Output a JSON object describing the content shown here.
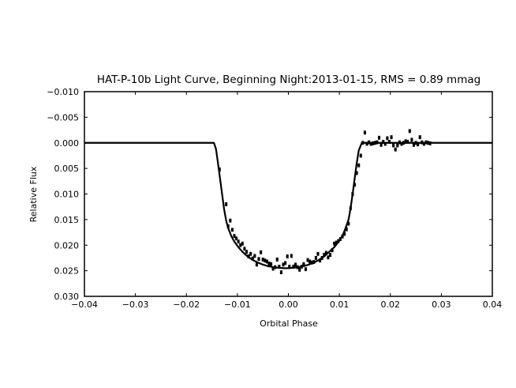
{
  "chart_data": {
    "type": "scatter",
    "title": "HAT-P-10b Light Curve, Beginning Night:2013-01-15, RMS = 0.89 mmag",
    "xlabel": "Orbital Phase",
    "ylabel": "Relative Flux",
    "xlim": [
      -0.04,
      0.04
    ],
    "ylim": [
      0.03,
      -0.01
    ],
    "y_inverted": true,
    "grid": false,
    "x_ticks": [
      -0.04,
      -0.03,
      -0.02,
      -0.01,
      0.0,
      0.01,
      0.02,
      0.03,
      0.04
    ],
    "x_tick_labels": [
      "−0.04",
      "−0.03",
      "−0.02",
      "−0.01",
      "0.00",
      "0.01",
      "0.02",
      "0.03",
      "0.04"
    ],
    "y_ticks": [
      -0.01,
      -0.005,
      0.0,
      0.005,
      0.01,
      0.015,
      0.02,
      0.025,
      0.03
    ],
    "y_tick_labels": [
      "−0.010",
      "−0.005",
      "0.000",
      "0.005",
      "0.010",
      "0.015",
      "0.020",
      "0.025",
      "0.030"
    ],
    "colors": {
      "data": "#000000",
      "model": "#000000",
      "background": "#ffffff"
    },
    "series": [
      {
        "kind": "errorbar-points",
        "error": 0.0003,
        "points": [
          [
            -0.0135,
            0.0052
          ],
          [
            -0.0122,
            0.012
          ],
          [
            -0.0118,
            0.0163
          ],
          [
            -0.0114,
            0.0152
          ],
          [
            -0.011,
            0.017
          ],
          [
            -0.0106,
            0.0182
          ],
          [
            -0.0102,
            0.0187
          ],
          [
            -0.0098,
            0.0193
          ],
          [
            -0.0094,
            0.02
          ],
          [
            -0.009,
            0.0197
          ],
          [
            -0.0086,
            0.0207
          ],
          [
            -0.0082,
            0.0213
          ],
          [
            -0.0078,
            0.0222
          ],
          [
            -0.0074,
            0.0217
          ],
          [
            -0.007,
            0.0226
          ],
          [
            -0.0066,
            0.0221
          ],
          [
            -0.0062,
            0.0238
          ],
          [
            -0.0058,
            0.0227
          ],
          [
            -0.0054,
            0.0214
          ],
          [
            -0.005,
            0.0228
          ],
          [
            -0.0046,
            0.023
          ],
          [
            -0.0042,
            0.0232
          ],
          [
            -0.0038,
            0.0236
          ],
          [
            -0.0034,
            0.0237
          ],
          [
            -0.003,
            0.0246
          ],
          [
            -0.0026,
            0.0243
          ],
          [
            -0.0022,
            0.0228
          ],
          [
            -0.0018,
            0.0242
          ],
          [
            -0.0014,
            0.0253
          ],
          [
            -0.001,
            0.0238
          ],
          [
            -0.0006,
            0.0235
          ],
          [
            -0.0002,
            0.0222
          ],
          [
            0.0002,
            0.0242
          ],
          [
            0.0006,
            0.0221
          ],
          [
            0.001,
            0.0242
          ],
          [
            0.0014,
            0.0238
          ],
          [
            0.0018,
            0.0243
          ],
          [
            0.0022,
            0.0248
          ],
          [
            0.0026,
            0.0242
          ],
          [
            0.003,
            0.0237
          ],
          [
            0.0034,
            0.0247
          ],
          [
            0.0038,
            0.0229
          ],
          [
            0.0042,
            0.0232
          ],
          [
            0.0046,
            0.0234
          ],
          [
            0.005,
            0.0233
          ],
          [
            0.0054,
            0.0225
          ],
          [
            0.0058,
            0.0217
          ],
          [
            0.0062,
            0.023
          ],
          [
            0.0066,
            0.0225
          ],
          [
            0.007,
            0.0219
          ],
          [
            0.0074,
            0.0215
          ],
          [
            0.0078,
            0.0224
          ],
          [
            0.0082,
            0.0219
          ],
          [
            0.0086,
            0.021
          ],
          [
            0.009,
            0.0197
          ],
          [
            0.0094,
            0.0195
          ],
          [
            0.0098,
            0.0192
          ],
          [
            0.0102,
            0.0188
          ],
          [
            0.0106,
            0.0183
          ],
          [
            0.011,
            0.0178
          ],
          [
            0.0114,
            0.0169
          ],
          [
            0.0118,
            0.0158
          ],
          [
            0.0122,
            0.0128
          ],
          [
            0.0126,
            0.01
          ],
          [
            0.013,
            0.0082
          ],
          [
            0.0134,
            0.0059
          ],
          [
            0.0138,
            0.0044
          ],
          [
            0.0142,
            0.0025
          ],
          [
            0.0146,
            0.0
          ],
          [
            0.015,
            -0.002
          ],
          [
            0.0154,
            0.0002
          ],
          [
            0.0158,
            -0.0001
          ],
          [
            0.0162,
            0.0002
          ],
          [
            0.0166,
            0.0001
          ],
          [
            0.017,
            0.0
          ],
          [
            0.0174,
            -0.0001
          ],
          [
            0.0178,
            -0.001
          ],
          [
            0.0182,
            0.0004
          ],
          [
            0.0186,
            -0.0002
          ],
          [
            0.019,
            0.0002
          ],
          [
            0.0194,
            -0.0009
          ],
          [
            0.0198,
            -0.0002
          ],
          [
            0.0202,
            -0.0011
          ],
          [
            0.0206,
            0.0005
          ],
          [
            0.021,
            0.0013
          ],
          [
            0.0214,
            0.0005
          ],
          [
            0.0218,
            -0.0001
          ],
          [
            0.0222,
            0.0002
          ],
          [
            0.0226,
            0.0
          ],
          [
            0.023,
            -0.0003
          ],
          [
            0.0234,
            -0.0002
          ],
          [
            0.0238,
            -0.0023
          ],
          [
            0.0242,
            -0.0006
          ],
          [
            0.0246,
            0.0004
          ],
          [
            0.025,
            0.0
          ],
          [
            0.0254,
            0.0003
          ],
          [
            0.0258,
            -0.0011
          ],
          [
            0.0262,
            -0.0001
          ],
          [
            0.0266,
            0.0002
          ],
          [
            0.027,
            -0.0001
          ],
          [
            0.0274,
            0.0
          ],
          [
            0.0278,
            0.0001
          ]
        ]
      },
      {
        "kind": "model-line",
        "points": [
          [
            -0.04,
            0.0
          ],
          [
            -0.0146,
            0.0
          ],
          [
            -0.0142,
            0.0012
          ],
          [
            -0.0138,
            0.004
          ],
          [
            -0.0134,
            0.007
          ],
          [
            -0.013,
            0.01
          ],
          [
            -0.0126,
            0.013
          ],
          [
            -0.0122,
            0.0152
          ],
          [
            -0.0118,
            0.0167
          ],
          [
            -0.0112,
            0.0182
          ],
          [
            -0.0106,
            0.0193
          ],
          [
            -0.0098,
            0.0204
          ],
          [
            -0.009,
            0.0213
          ],
          [
            -0.008,
            0.0222
          ],
          [
            -0.007,
            0.0229
          ],
          [
            -0.006,
            0.0234
          ],
          [
            -0.005,
            0.0238
          ],
          [
            -0.004,
            0.0241
          ],
          [
            -0.003,
            0.0243
          ],
          [
            -0.002,
            0.0244
          ],
          [
            -0.001,
            0.0245
          ],
          [
            0.0,
            0.0245
          ],
          [
            0.001,
            0.0244
          ],
          [
            0.002,
            0.0243
          ],
          [
            0.003,
            0.0241
          ],
          [
            0.004,
            0.0238
          ],
          [
            0.005,
            0.0234
          ],
          [
            0.006,
            0.0229
          ],
          [
            0.007,
            0.0222
          ],
          [
            0.008,
            0.0213
          ],
          [
            0.009,
            0.0204
          ],
          [
            0.0098,
            0.0194
          ],
          [
            0.0106,
            0.0182
          ],
          [
            0.0112,
            0.0167
          ],
          [
            0.0118,
            0.015
          ],
          [
            0.0122,
            0.0128
          ],
          [
            0.0126,
            0.01
          ],
          [
            0.013,
            0.007
          ],
          [
            0.0134,
            0.004
          ],
          [
            0.0138,
            0.0015
          ],
          [
            0.0144,
            0.0
          ],
          [
            0.04,
            0.0
          ]
        ]
      }
    ]
  }
}
